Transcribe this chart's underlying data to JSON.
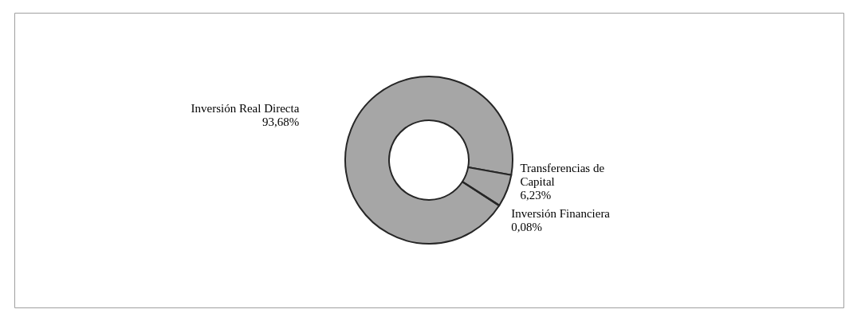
{
  "chart_data": {
    "type": "donut",
    "categories": [
      "Inversión Real Directa",
      "Transferencias de Capital",
      "Inversión Financiera"
    ],
    "values": [
      93.68,
      6.23,
      0.08
    ],
    "colors": [
      "#a6a6a6",
      "#a6a6a6",
      "#a6a6a6"
    ],
    "value_labels": [
      "93,68%",
      "6,23%",
      "0,08%"
    ],
    "legend": false
  }
}
